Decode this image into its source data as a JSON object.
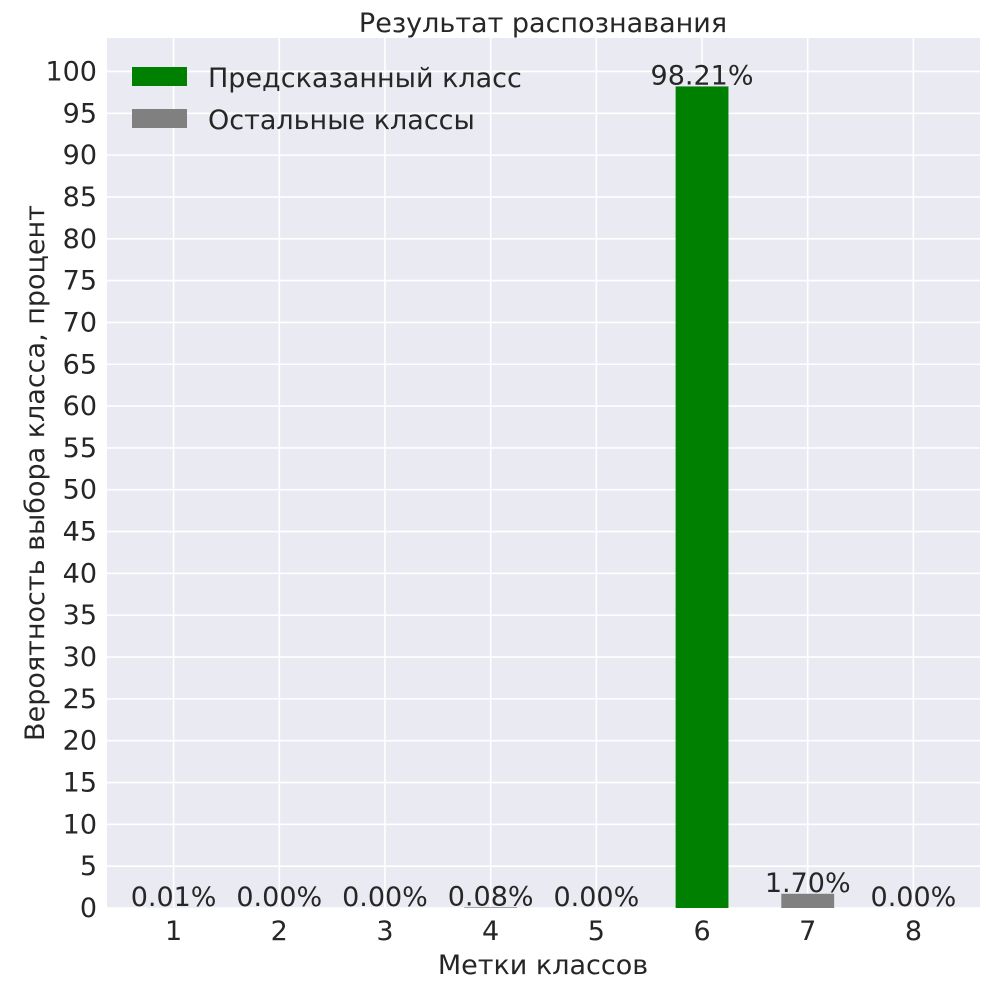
{
  "chart_data": {
    "type": "bar",
    "title": "Результат распознавания",
    "xlabel": "Метки классов",
    "ylabel": "Вероятность выбора класса, процент",
    "categories": [
      "1",
      "2",
      "3",
      "4",
      "5",
      "6",
      "7",
      "8"
    ],
    "values": [
      0.01,
      0.0,
      0.0,
      0.08,
      0.0,
      98.21,
      1.7,
      0.0
    ],
    "value_labels": [
      "0.01%",
      "0.00%",
      "0.00%",
      "0.08%",
      "0.00%",
      "98.21%",
      "1.70%",
      "0.00%"
    ],
    "predicted_index": 5,
    "ylim": [
      0,
      104
    ],
    "yticks": [
      0,
      5,
      10,
      15,
      20,
      25,
      30,
      35,
      40,
      45,
      50,
      55,
      60,
      65,
      70,
      75,
      80,
      85,
      90,
      95,
      100
    ],
    "grid": true,
    "legend_position": "top-left",
    "legend": [
      {
        "label": "Предсказанный класс",
        "color": "#008000"
      },
      {
        "label": "Остальные классы",
        "color": "#808080"
      }
    ],
    "colors": {
      "background": "#EAEAF2",
      "grid": "#FFFFFF",
      "predicted": "#008000",
      "other": "#808080",
      "text": "#262626"
    }
  }
}
